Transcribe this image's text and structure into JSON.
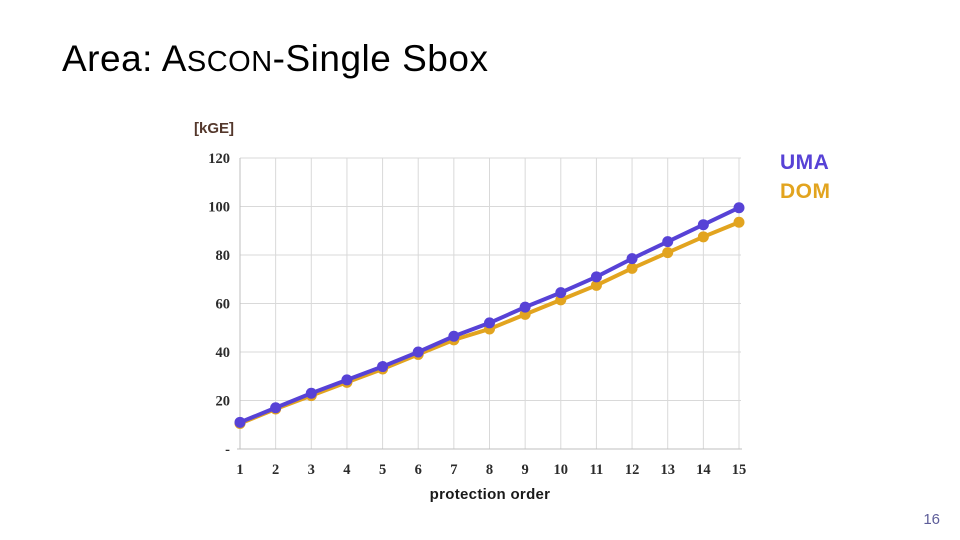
{
  "slide_title": {
    "prefix": "Area: ",
    "ascon_lead": "A",
    "ascon_rest": "SCON",
    "suffix": "-Single Sbox"
  },
  "footer": {
    "page_number": "16"
  },
  "chart_data": {
    "type": "line",
    "title": "Area: Ascon-Single Sbox",
    "xlabel": "protection order",
    "ylabel": "[kGE]",
    "units": "kGE",
    "x": [
      1,
      2,
      3,
      4,
      5,
      6,
      7,
      8,
      9,
      10,
      11,
      12,
      13,
      14,
      15
    ],
    "ylim": [
      0,
      120
    ],
    "y_ticks": [
      {
        "value": 120,
        "label": "120"
      },
      {
        "value": 100,
        "label": "100"
      },
      {
        "value": 80,
        "label": "80"
      },
      {
        "value": 60,
        "label": "60"
      },
      {
        "value": 40,
        "label": "40"
      },
      {
        "value": 20,
        "label": "20"
      },
      {
        "value": 0,
        "label": "-"
      }
    ],
    "grid": true,
    "legend_position": "outside-right-top",
    "series": [
      {
        "name": "UMA",
        "color": "#5742D6",
        "values": [
          11,
          17,
          23,
          28.5,
          34,
          40,
          46.5,
          52,
          58.5,
          64.5,
          71,
          78.5,
          85.5,
          92.5,
          99.5
        ]
      },
      {
        "name": "DOM",
        "color": "#E2A41F",
        "values": [
          10.5,
          16.5,
          22,
          27.5,
          33,
          39,
          45,
          49.5,
          55.5,
          61.5,
          67.5,
          74.5,
          81,
          87.5,
          93.5
        ]
      }
    ]
  },
  "colors": {
    "uma": "#5742D6",
    "dom": "#E2A41F",
    "grid": "#D9D9D9",
    "axis": "#BFBFBF",
    "axis_text": "#2B2B2B",
    "ylabel_text": "#54382C",
    "page_number": "#5D5D99"
  }
}
